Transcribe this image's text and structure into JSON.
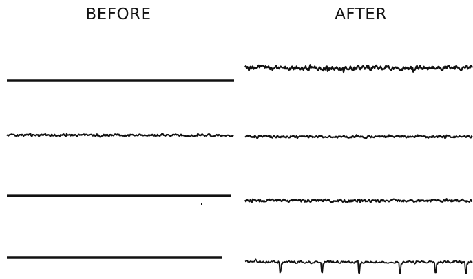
{
  "headings": {
    "before": "BEFORE",
    "after": "AFTER"
  },
  "colors": {
    "ink": "#111111",
    "background": "#ffffff"
  },
  "panels": {
    "before": [
      {
        "kind": "flat"
      },
      {
        "kind": "noisy",
        "amplitude": "low"
      },
      {
        "kind": "flat",
        "stray_dot": true
      },
      {
        "kind": "flat"
      }
    ],
    "after": [
      {
        "kind": "noisy",
        "amplitude": "high"
      },
      {
        "kind": "noisy",
        "amplitude": "low"
      },
      {
        "kind": "noisy",
        "amplitude": "medium"
      },
      {
        "kind": "noisy_with_spikes",
        "amplitude": "low",
        "spike_count": 6
      }
    ]
  }
}
